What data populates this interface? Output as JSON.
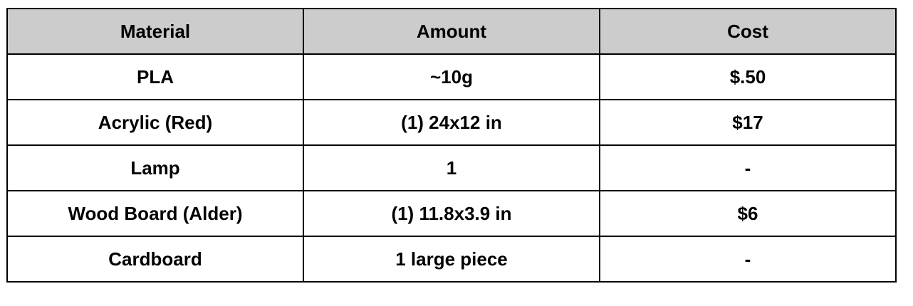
{
  "table": {
    "headers": [
      "Material",
      "Amount",
      "Cost"
    ],
    "rows": [
      [
        "PLA",
        "~10g",
        "$.50"
      ],
      [
        "Acrylic (Red)",
        "(1) 24x12 in",
        "$17"
      ],
      [
        "Lamp",
        "1",
        "-"
      ],
      [
        "Wood Board (Alder)",
        "(1) 11.8x3.9 in",
        "$6"
      ],
      [
        "Cardboard",
        "1 large piece",
        "-"
      ]
    ],
    "header_background": "#cccccc",
    "border_color": "#000000"
  }
}
